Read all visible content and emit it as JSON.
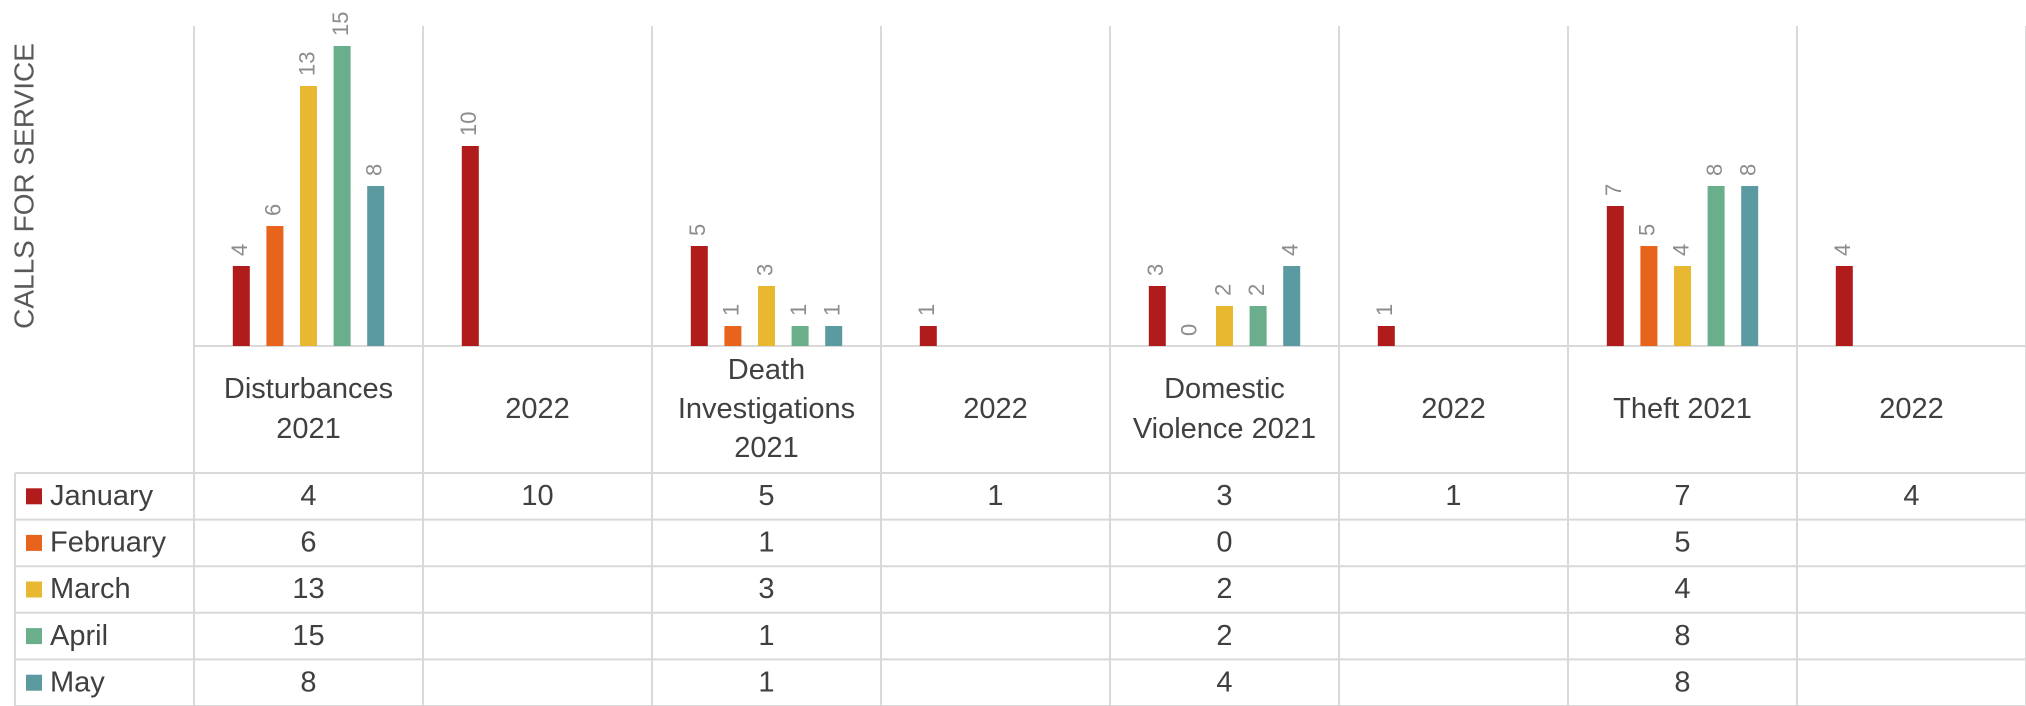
{
  "chart_data": {
    "type": "bar",
    "y_axis_label": "CALLS FOR SERVICE",
    "categories": [
      "Disturbances 2021",
      "2022",
      "Death Investigations 2021",
      "2022",
      "Domestic Violence 2021",
      "2022",
      "Theft 2021",
      "2022"
    ],
    "series": [
      {
        "name": "January",
        "color": "#b01c1c",
        "values": [
          4,
          10,
          5,
          1,
          3,
          1,
          7,
          4
        ]
      },
      {
        "name": "February",
        "color": "#e8641c",
        "values": [
          6,
          null,
          1,
          null,
          0,
          null,
          5,
          null
        ]
      },
      {
        "name": "March",
        "color": "#e8b830",
        "values": [
          13,
          null,
          3,
          null,
          2,
          null,
          4,
          null
        ]
      },
      {
        "name": "April",
        "color": "#6aae8c",
        "values": [
          15,
          null,
          1,
          null,
          2,
          null,
          8,
          null
        ]
      },
      {
        "name": "May",
        "color": "#5a9aa0",
        "values": [
          8,
          null,
          1,
          null,
          4,
          null,
          8,
          null
        ]
      }
    ],
    "ylim": [
      0,
      16
    ]
  }
}
